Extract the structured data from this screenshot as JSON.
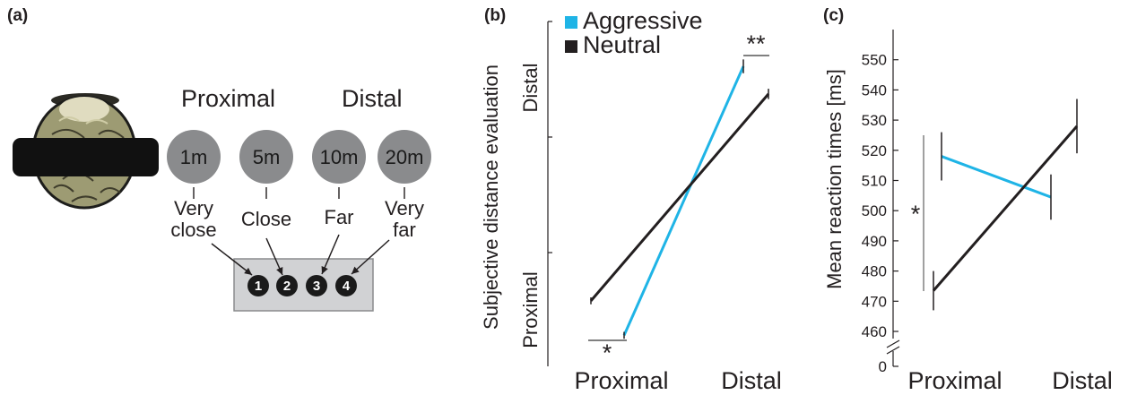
{
  "colors": {
    "aggressive": "#1fb4e6",
    "neutral": "#231f20",
    "circle": "#8a8b8d",
    "box_fill": "#d1d2d4",
    "box_stroke": "#8a8b8d",
    "grey_line": "#808080"
  },
  "panel_a": {
    "label": "(a)",
    "group_proximal": "Proximal",
    "group_distal": "Distal",
    "distances": [
      "1m",
      "5m",
      "10m",
      "20m"
    ],
    "answers": [
      {
        "line1": "Very",
        "line2": "close"
      },
      {
        "line1": "Close",
        "line2": ""
      },
      {
        "line1": "Far",
        "line2": ""
      },
      {
        "line1": "Very",
        "line2": "far"
      }
    ],
    "keys": [
      "1",
      "2",
      "3",
      "4"
    ]
  },
  "chart_data": [
    {
      "type": "line",
      "panel_label": "(b)",
      "ylabel": "Subjective distance evaluation",
      "categories": [
        "Proximal",
        "Distal"
      ],
      "y_tick_labels": [
        "Proximal",
        "Distal"
      ],
      "legend": [
        "Aggressive",
        "Neutral"
      ],
      "legend_position": "top-left",
      "ylim": [
        0,
        1
      ],
      "series": [
        {
          "name": "Aggressive",
          "values": [
            0.09,
            0.87
          ],
          "errors": [
            0.01,
            0.02
          ]
        },
        {
          "name": "Neutral",
          "values": [
            0.19,
            0.79
          ],
          "errors": [
            0.01,
            0.015
          ]
        }
      ],
      "annotations": [
        {
          "text": "*",
          "at": "Proximal"
        },
        {
          "text": "**",
          "at": "Distal"
        }
      ]
    },
    {
      "type": "line",
      "panel_label": "(c)",
      "ylabel": "Mean reaction times [ms]",
      "categories": [
        "Proximal",
        "Distal"
      ],
      "y_ticks": [
        0,
        460,
        470,
        480,
        490,
        500,
        510,
        520,
        530,
        540,
        550
      ],
      "ylim": [
        455,
        550
      ],
      "axis_break": true,
      "series": [
        {
          "name": "Aggressive",
          "values": [
            518,
            504.5
          ],
          "errors": [
            8,
            7.5
          ]
        },
        {
          "name": "Neutral",
          "values": [
            473.5,
            528
          ],
          "errors": [
            6.5,
            9
          ]
        }
      ],
      "annotations": [
        {
          "text": "*",
          "at": "Proximal"
        }
      ]
    }
  ]
}
